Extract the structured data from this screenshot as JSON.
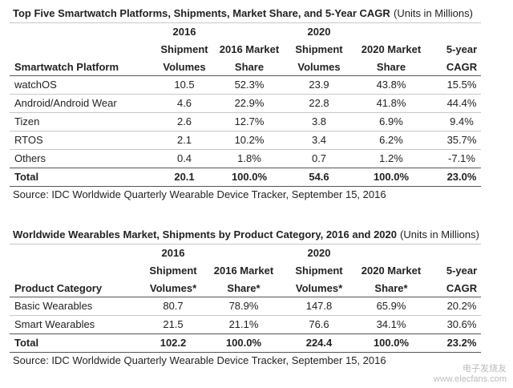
{
  "tables": [
    {
      "title": "Top Five Smartwatch Platforms, Shipments, Market Share, and 5-Year CAGR",
      "title_note": "(Units in Millions)",
      "columns": [
        [
          "Smartwatch Platform"
        ],
        [
          "2016",
          "Shipment",
          "Volumes"
        ],
        [
          "2016 Market",
          "Share"
        ],
        [
          "2020",
          "Shipment",
          "Volumes"
        ],
        [
          "2020 Market",
          "Share"
        ],
        [
          "5-year",
          "CAGR"
        ]
      ],
      "rows": [
        [
          "watchOS",
          "10.5",
          "52.3%",
          "23.9",
          "43.8%",
          "15.5%"
        ],
        [
          "Android/Android Wear",
          "4.6",
          "22.9%",
          "22.8",
          "41.8%",
          "44.4%"
        ],
        [
          "Tizen",
          "2.6",
          "12.7%",
          "3.8",
          "6.9%",
          "9.4%"
        ],
        [
          "RTOS",
          "2.1",
          "10.2%",
          "3.4",
          "6.2%",
          "35.7%"
        ],
        [
          "Others",
          "0.4",
          "1.8%",
          "0.7",
          "1.2%",
          "-7.1%"
        ]
      ],
      "total": [
        "Total",
        "20.1",
        "100.0%",
        "54.6",
        "100.0%",
        "23.0%"
      ],
      "source": "Source: IDC Worldwide Quarterly Wearable Device Tracker, September 15, 2016"
    },
    {
      "title": "Worldwide Wearables Market, Shipments by Product Category, 2016 and 2020",
      "title_note": "(Units in Millions)",
      "columns": [
        [
          "Product Category"
        ],
        [
          "2016",
          "Shipment",
          "Volumes*"
        ],
        [
          "2016 Market",
          "Share*"
        ],
        [
          "2020",
          "Shipment",
          "Volumes*"
        ],
        [
          "2020 Market",
          "Share*"
        ],
        [
          "5-year",
          "CAGR"
        ]
      ],
      "rows": [
        [
          "Basic Wearables",
          "80.7",
          "78.9%",
          "147.8",
          "65.9%",
          "20.2%"
        ],
        [
          "Smart Wearables",
          "21.5",
          "21.1%",
          "76.6",
          "34.1%",
          "30.6%"
        ]
      ],
      "total": [
        "Total",
        "102.2",
        "100.0%",
        "224.4",
        "100.0%",
        "23.2%"
      ],
      "source": "Source: IDC Worldwide Quarterly Wearable Device Tracker, September 15, 2016"
    }
  ],
  "watermark": [
    "电子发烧友",
    "www.elecfans.com"
  ]
}
